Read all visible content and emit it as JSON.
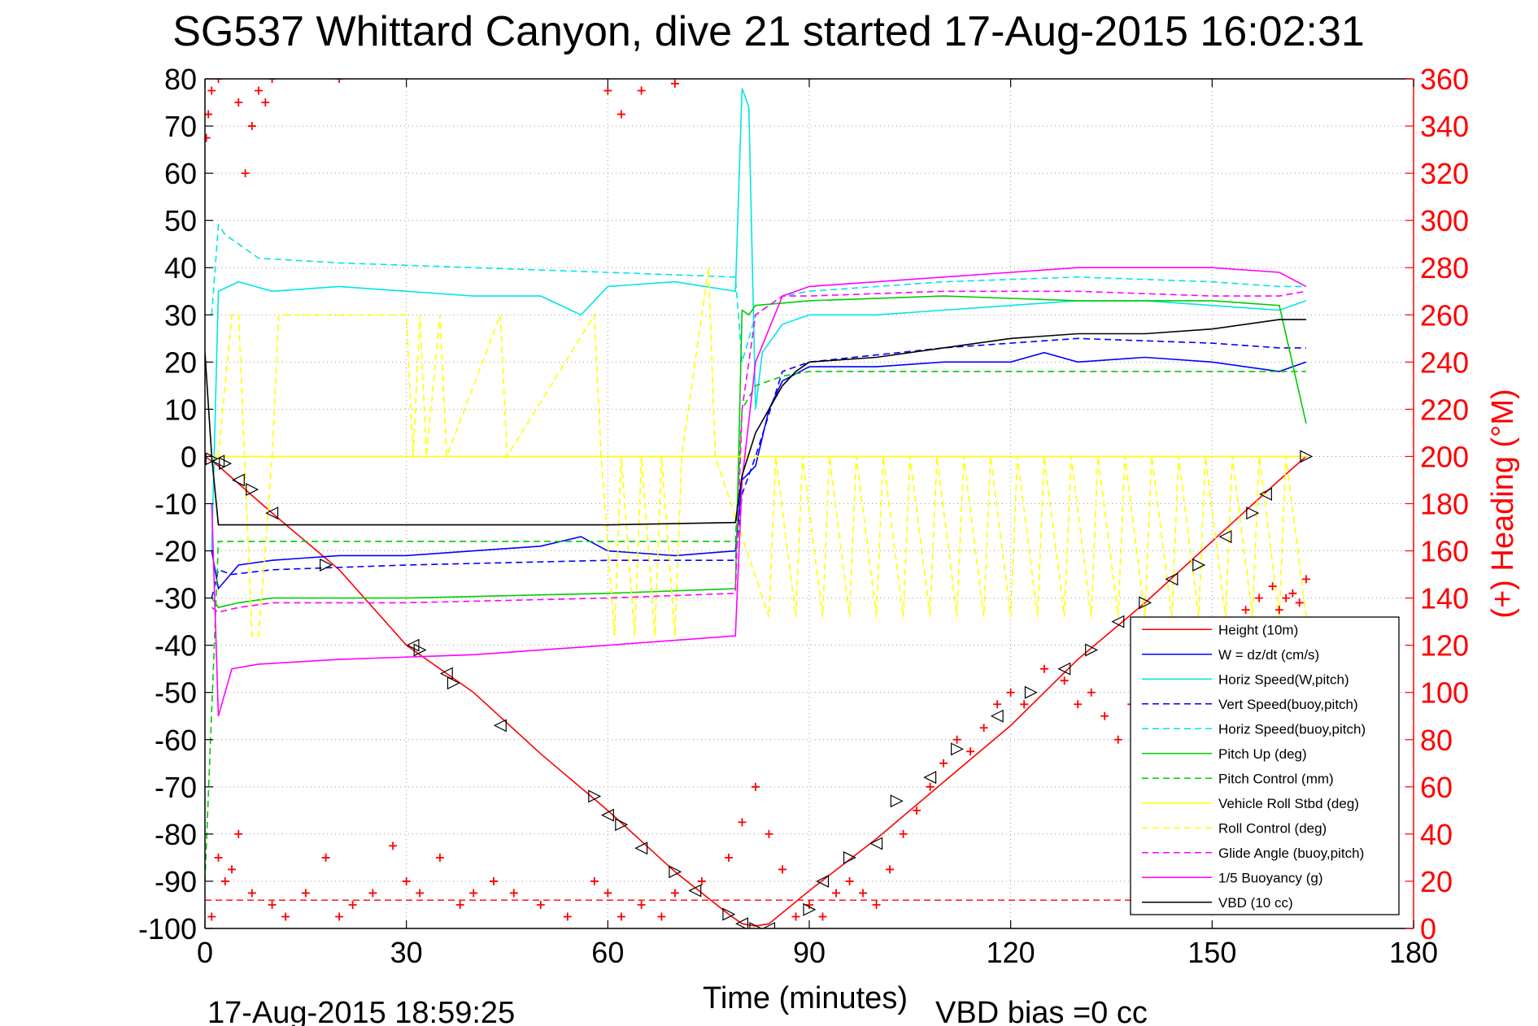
{
  "chart_data": {
    "type": "line",
    "title": "SG537 Whittard Canyon, dive 21 started 17-Aug-2015 16:02:31",
    "xlabel": "Time (minutes)",
    "ylabel_right": "(+) Heading (°M)",
    "timestamp": "17-Aug-2015 18:59:25",
    "footnote": "VBD bias =0 cc",
    "xlim": [
      0,
      180
    ],
    "ylim": [
      -100,
      80
    ],
    "ylim_right": [
      0,
      360
    ],
    "x_ticks": [
      0,
      30,
      60,
      90,
      120,
      150,
      180
    ],
    "y_ticks": [
      80,
      70,
      60,
      50,
      40,
      30,
      20,
      10,
      0,
      -10,
      -20,
      -30,
      -40,
      -50,
      -60,
      -70,
      -80,
      -90,
      -100
    ],
    "y_ticks_right": [
      360,
      340,
      320,
      300,
      280,
      260,
      240,
      220,
      200,
      180,
      160,
      140,
      120,
      100,
      80,
      60,
      40,
      20,
      0
    ],
    "grid": true,
    "legend_position": "bottom-right",
    "series": [
      {
        "name": "Height (10m)",
        "color": "#ff0000",
        "style": "solid",
        "x": [
          0,
          2,
          10,
          20,
          30,
          40,
          50,
          60,
          70,
          78,
          80,
          82,
          84,
          90,
          100,
          110,
          120,
          130,
          140,
          150,
          160,
          164
        ],
        "y": [
          0,
          -2,
          -12,
          -24,
          -40,
          -50,
          -63,
          -75,
          -88,
          -97,
          -99,
          -99.5,
          -99,
          -92,
          -81,
          -69,
          -57,
          -43,
          -31,
          -18,
          -5,
          0
        ]
      },
      {
        "name": "W = dz/dt (cm/s)",
        "color": "#0000ff",
        "style": "solid",
        "x": [
          1,
          2,
          5,
          10,
          20,
          30,
          40,
          50,
          56,
          60,
          70,
          79,
          80,
          82,
          84,
          86,
          90,
          100,
          110,
          120,
          125,
          130,
          140,
          150,
          160,
          164
        ],
        "y": [
          -20,
          -28,
          -23,
          -22,
          -21,
          -21,
          -20,
          -19,
          -17,
          -20,
          -21,
          -20,
          -5,
          -2,
          10,
          16,
          19,
          19,
          20,
          20,
          22,
          20,
          21,
          20,
          18,
          20
        ]
      },
      {
        "name": "Horiz Speed(W,pitch)",
        "color": "#00e5e5",
        "style": "solid",
        "x": [
          1,
          2,
          5,
          10,
          20,
          30,
          40,
          50,
          56,
          60,
          70,
          79,
          80,
          81,
          82,
          83,
          86,
          90,
          100,
          110,
          120,
          130,
          140,
          150,
          160,
          164
        ],
        "y": [
          -20,
          35,
          37,
          35,
          36,
          35,
          34,
          34,
          30,
          36,
          37,
          35,
          78,
          74,
          10,
          22,
          28,
          30,
          30,
          31,
          32,
          33,
          33,
          32,
          31,
          33
        ]
      },
      {
        "name": "Vert Speed(buoy,pitch)",
        "color": "#0000ff",
        "style": "dashed",
        "x": [
          1,
          2,
          4,
          10,
          30,
          60,
          79,
          80,
          82,
          86,
          90,
          110,
          130,
          150,
          160,
          164
        ],
        "y": [
          -30,
          -24,
          -25,
          -24,
          -23,
          -22,
          -22,
          -8,
          0,
          18,
          20,
          23,
          25,
          24,
          23,
          23
        ]
      },
      {
        "name": "Horiz Speed(buoy,pitch)",
        "color": "#00e5e5",
        "style": "dashed",
        "x": [
          1,
          2,
          3,
          8,
          20,
          40,
          60,
          79,
          80,
          82,
          86,
          90,
          110,
          130,
          150,
          160,
          164
        ],
        "y": [
          30,
          49,
          47,
          42,
          41,
          40,
          39,
          38,
          20,
          30,
          34,
          35,
          37,
          38,
          37,
          36,
          36
        ]
      },
      {
        "name": "Pitch Up (deg)",
        "color": "#00cc00",
        "style": "solid",
        "x": [
          1,
          2,
          5,
          10,
          30,
          60,
          79,
          80,
          81,
          82,
          90,
          110,
          130,
          150,
          160,
          164
        ],
        "y": [
          -30,
          -32,
          -31,
          -30,
          -30,
          -29,
          -28,
          31,
          30,
          32,
          33,
          34,
          33,
          33,
          32,
          7
        ]
      },
      {
        "name": "Pitch Control (mm)",
        "color": "#00cc00",
        "style": "dashed",
        "x": [
          0,
          2,
          10,
          30,
          60,
          79,
          80,
          82,
          86,
          90,
          110,
          130,
          150,
          164
        ],
        "y": [
          -90,
          -18,
          -18,
          -18,
          -18,
          -18,
          10,
          15,
          17,
          18,
          18,
          18,
          18,
          18
        ]
      },
      {
        "name": "Vehicle Roll Stbd (deg)",
        "color": "#ffff00",
        "style": "solid",
        "x": [
          0,
          20,
          40,
          60,
          80,
          100,
          120,
          140,
          160,
          164
        ],
        "y": [
          0,
          0,
          0,
          0,
          0,
          0,
          0,
          0,
          0,
          0
        ]
      },
      {
        "name": "Roll Control (deg)",
        "color": "#ffff00",
        "style": "dashed",
        "x": [
          2,
          4,
          5,
          7,
          8,
          10,
          11,
          30,
          31,
          32,
          33,
          35,
          36,
          44,
          45,
          58,
          59,
          61,
          62,
          64,
          65,
          67,
          68,
          70,
          71,
          75,
          76,
          84,
          85,
          88,
          89,
          92,
          93,
          96,
          97,
          100,
          101,
          104,
          105,
          108,
          109,
          112,
          113,
          116,
          117,
          120,
          121,
          124,
          125,
          128,
          129,
          132,
          133,
          136,
          137,
          140,
          141,
          144,
          145,
          148,
          149,
          152,
          153,
          156,
          157,
          160,
          161,
          164
        ],
        "y": [
          0,
          30,
          30,
          -38,
          -38,
          0,
          30,
          30,
          0,
          30,
          0,
          30,
          0,
          30,
          0,
          30,
          0,
          -38,
          0,
          -38,
          0,
          -38,
          0,
          -38,
          0,
          40,
          0,
          -34,
          0,
          -34,
          0,
          -34,
          0,
          -34,
          0,
          -34,
          0,
          -34,
          0,
          -34,
          0,
          -34,
          0,
          -34,
          0,
          -34,
          0,
          -34,
          0,
          -34,
          0,
          -34,
          0,
          -34,
          0,
          -34,
          0,
          -34,
          0,
          -34,
          0,
          -34,
          0,
          -34,
          0,
          -34,
          0,
          -34
        ]
      },
      {
        "name": "Glide Angle (buoy,pitch)",
        "color": "#ff00ff",
        "style": "dashed",
        "x": [
          1,
          2,
          5,
          10,
          30,
          60,
          79,
          80,
          82,
          86,
          90,
          110,
          130,
          150,
          160,
          164
        ],
        "y": [
          -32,
          -33,
          -32,
          -31,
          -31,
          -30,
          -29,
          10,
          30,
          34,
          34,
          35,
          35,
          34,
          34,
          35
        ]
      },
      {
        "name": "1/5 Buoyancy (g)",
        "color": "#ff00ff",
        "style": "solid",
        "x": [
          1,
          2,
          4,
          8,
          20,
          40,
          60,
          79,
          80,
          82,
          86,
          90,
          110,
          130,
          140,
          150,
          160,
          164
        ],
        "y": [
          -10,
          -55,
          -45,
          -44,
          -43,
          -42,
          -40,
          -38,
          -5,
          20,
          34,
          36,
          38,
          40,
          40,
          40,
          39,
          36
        ]
      },
      {
        "name": "VBD (10 cc)",
        "color": "#000000",
        "style": "solid",
        "x": [
          0,
          1,
          2,
          10,
          30,
          60,
          79,
          80,
          82,
          84,
          86,
          88,
          90,
          100,
          110,
          120,
          130,
          140,
          150,
          160,
          164
        ],
        "y": [
          22,
          0,
          -14.5,
          -14.5,
          -14.5,
          -14.5,
          -14,
          -4,
          5,
          10,
          15,
          18,
          20,
          21,
          23,
          25,
          26,
          26,
          27,
          29,
          29
        ]
      }
    ],
    "heading_series": {
      "name": "Heading (°M)",
      "axis": "right",
      "color": "#ff0000",
      "marker": "+",
      "x": [
        0.2,
        0.5,
        1,
        2,
        5,
        6,
        7,
        8,
        9,
        10,
        20,
        60,
        62,
        65,
        70,
        1,
        2,
        3,
        4,
        5,
        7,
        10,
        12,
        15,
        18,
        20,
        22,
        25,
        28,
        30,
        32,
        35,
        38,
        40,
        43,
        46,
        50,
        54,
        58,
        60,
        62,
        65,
        68,
        70,
        74,
        78,
        80,
        82,
        84,
        86,
        88,
        90,
        92,
        94,
        96,
        98,
        100,
        102,
        104,
        106,
        108,
        110,
        112,
        114,
        116,
        118,
        120,
        122,
        125,
        128,
        130,
        132,
        134,
        136,
        138,
        140,
        155,
        157,
        159,
        160,
        161,
        162,
        163,
        164
      ],
      "y": [
        335,
        345,
        355,
        360,
        350,
        320,
        340,
        355,
        350,
        360,
        360,
        355,
        345,
        355,
        358,
        5,
        30,
        20,
        25,
        40,
        15,
        10,
        5,
        15,
        30,
        5,
        10,
        15,
        35,
        20,
        15,
        30,
        10,
        15,
        20,
        15,
        10,
        5,
        20,
        15,
        5,
        10,
        5,
        15,
        20,
        30,
        45,
        60,
        40,
        25,
        5,
        10,
        5,
        15,
        20,
        15,
        10,
        25,
        40,
        50,
        60,
        70,
        80,
        75,
        85,
        95,
        100,
        95,
        110,
        105,
        95,
        100,
        90,
        80,
        95,
        105,
        135,
        140,
        145,
        135,
        140,
        142,
        138,
        148
      ]
    },
    "heading_reference": {
      "color": "#ff0000",
      "style": "dashed",
      "value_right": 12,
      "x": [
        0,
        164
      ]
    },
    "markers_triangles": {
      "color": "#000000",
      "x": [
        1,
        2,
        3,
        5,
        7,
        10,
        18,
        31,
        32,
        36,
        37,
        44,
        58,
        60,
        62,
        65,
        70,
        73,
        78,
        80,
        82,
        84,
        90,
        92,
        96,
        100,
        103,
        108,
        112,
        118,
        123,
        128,
        132,
        136,
        140,
        144,
        148,
        152,
        156,
        158,
        164
      ],
      "y": [
        -0.5,
        -1,
        -1.5,
        -5,
        -7,
        -12,
        -23,
        -40,
        -41,
        -46,
        -48,
        -57,
        -72,
        -76,
        -78,
        -83,
        -88,
        -92,
        -97,
        -99,
        -100,
        -100,
        -96,
        -90,
        -85,
        -82,
        -73,
        -68,
        -62,
        -55,
        -50,
        -45,
        -41,
        -35,
        -31,
        -26,
        -23,
        -17,
        -12,
        -8,
        0
      ]
    }
  }
}
